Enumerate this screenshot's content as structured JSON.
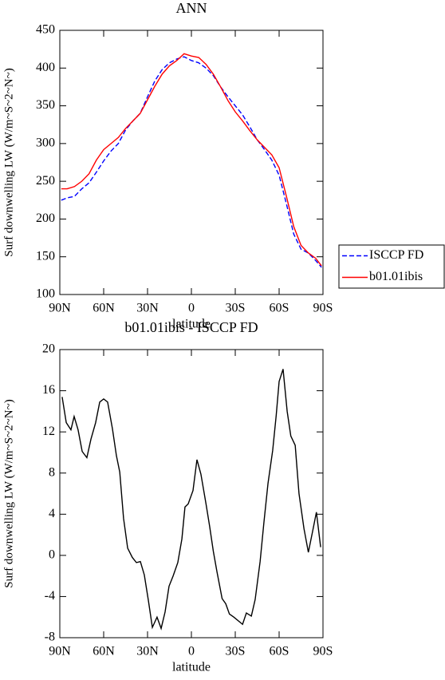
{
  "chart_data": [
    {
      "type": "line",
      "title": "ANN",
      "xlabel": "latitude",
      "ylabel": "Surf downwelling LW (W/m~S~2~N~)",
      "x": [
        89,
        85,
        80,
        75,
        70,
        65,
        60,
        55,
        50,
        45,
        40,
        35,
        30,
        25,
        20,
        15,
        10,
        5,
        0,
        -5,
        -10,
        -15,
        -20,
        -25,
        -30,
        -35,
        -40,
        -45,
        -50,
        -55,
        -60,
        -65,
        -70,
        -75,
        -80,
        -85,
        -89
      ],
      "series": [
        {
          "name": "ISCCP FD",
          "color": "#0000ff",
          "style": "dashed",
          "values": [
            225,
            228,
            230,
            240,
            248,
            262,
            277,
            290,
            300,
            318,
            330,
            340,
            362,
            383,
            398,
            407,
            412,
            415,
            410,
            407,
            400,
            390,
            375,
            362,
            350,
            338,
            322,
            305,
            292,
            278,
            258,
            220,
            180,
            160,
            155,
            145,
            136
          ]
        },
        {
          "name": "b01.01ibis",
          "color": "#ff0000",
          "style": "solid",
          "values": [
            240,
            240,
            243,
            250,
            260,
            278,
            292,
            300,
            308,
            320,
            330,
            340,
            358,
            376,
            392,
            403,
            410,
            419,
            416,
            414,
            405,
            392,
            375,
            357,
            342,
            330,
            317,
            305,
            295,
            285,
            268,
            230,
            190,
            165,
            155,
            148,
            138
          ]
        }
      ],
      "xlim": [
        90,
        -90
      ],
      "xticks": [
        {
          "value": 90,
          "label": "90N"
        },
        {
          "value": 60,
          "label": "60N"
        },
        {
          "value": 30,
          "label": "30N"
        },
        0,
        {
          "value": -30,
          "label": "30S"
        },
        {
          "value": -60,
          "label": "60S"
        },
        {
          "value": -90,
          "label": "90S"
        }
      ],
      "ylim": [
        100,
        450
      ],
      "yticks": [
        100,
        150,
        200,
        250,
        300,
        350,
        400,
        450
      ],
      "legend": "right"
    },
    {
      "type": "line",
      "title": "b01.01ibis - ISCCP FD",
      "xlabel": "latitude",
      "ylabel": "Surf downwelling LW (W/m~S~2~N~)",
      "x": [
        88.4,
        85.6,
        82.4,
        80.2,
        77.5,
        74.7,
        71.5,
        68.7,
        65.5,
        62.7,
        60,
        57.3,
        54,
        51.3,
        49,
        46.4,
        43.6,
        40.4,
        37.6,
        34.9,
        32.2,
        29.4,
        26.7,
        23.5,
        20.7,
        18,
        15.3,
        12.5,
        9.3,
        6.5,
        4.4,
        2.2,
        -1.1,
        -3.8,
        -6.5,
        -10,
        -12.5,
        -15,
        -17.5,
        -21,
        -23.5,
        -26,
        -29,
        -35,
        -37.6,
        -41,
        -43.6,
        -47,
        -49.6,
        -52.4,
        -55.6,
        -58,
        -60,
        -62.7,
        -65.5,
        -68,
        -71,
        -73.6,
        -77,
        -80,
        -83,
        -85.5,
        -88.4
      ],
      "values": [
        15.4,
        12.9,
        12.2,
        13.5,
        12.2,
        10.1,
        9.5,
        11.3,
        12.9,
        14.9,
        15.2,
        14.9,
        12.3,
        9.7,
        8.1,
        3.6,
        0.7,
        -0.2,
        -0.7,
        -0.6,
        -1.9,
        -4.4,
        -7,
        -6,
        -7.1,
        -5.5,
        -3,
        -2,
        -0.7,
        1.6,
        4.7,
        5,
        6.3,
        9.3,
        7.9,
        5,
        2.8,
        0.4,
        -1.6,
        -4.2,
        -4.7,
        -5.7,
        -6,
        -6.7,
        -5.6,
        -5.9,
        -4.3,
        -0.6,
        3.2,
        7,
        10.2,
        13.6,
        16.9,
        18.1,
        14,
        11.6,
        10.7,
        6,
        2.6,
        0.3,
        2.4,
        4.2,
        0.8
      ],
      "color": "#000000",
      "xlim": [
        90,
        -90
      ],
      "xticks": [
        {
          "value": 90,
          "label": "90N"
        },
        {
          "value": 60,
          "label": "60N"
        },
        {
          "value": 30,
          "label": "30N"
        },
        0,
        {
          "value": -30,
          "label": "30S"
        },
        {
          "value": -60,
          "label": "60S"
        },
        {
          "value": -90,
          "label": "90S"
        }
      ],
      "ylim": [
        -8,
        20
      ],
      "yticks": [
        -8,
        -4,
        0,
        4,
        8,
        12,
        16,
        20
      ]
    }
  ]
}
